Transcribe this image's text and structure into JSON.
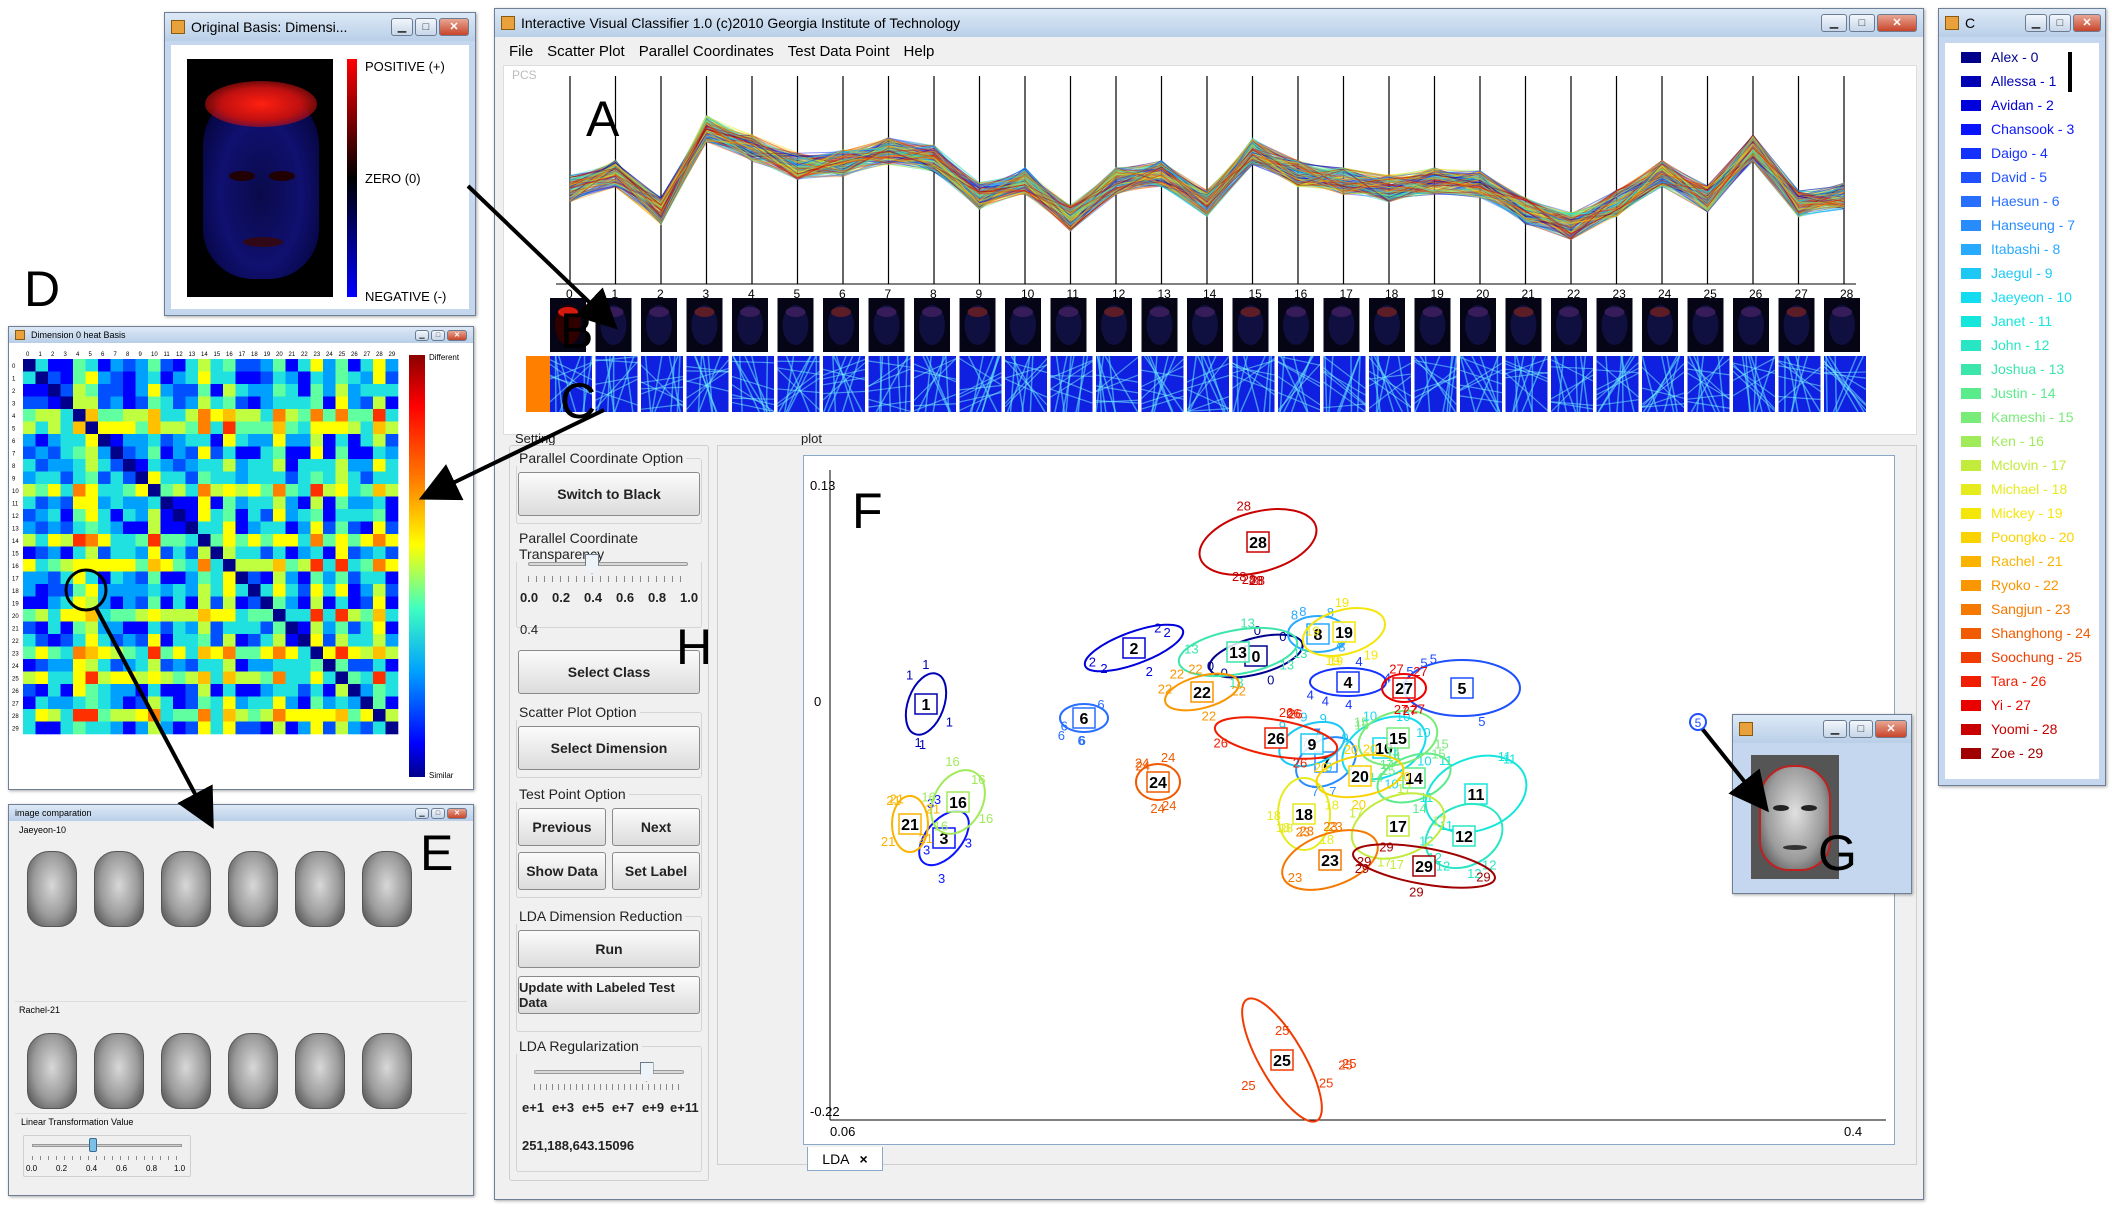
{
  "main_window": {
    "title": "Interactive Visual Classifier 1.0 (c)2010 Georgia Institute of Technology",
    "menu": [
      "File",
      "Scatter Plot",
      "Parallel Coordinates",
      "Test Data Point",
      "Help"
    ],
    "pcs_label": "PCS",
    "axis_numbers": [
      "0",
      "1",
      "2",
      "3",
      "4",
      "5",
      "6",
      "7",
      "8",
      "9",
      "10",
      "11",
      "12",
      "13",
      "14",
      "15",
      "16",
      "17",
      "18",
      "19",
      "20",
      "21",
      "22",
      "23",
      "24",
      "25",
      "26",
      "27",
      "28"
    ]
  },
  "setting": {
    "title": "Setting",
    "pc_option": {
      "title": "Parallel Coordinate Option",
      "button": "Switch to Black"
    },
    "pc_transparency": {
      "title": "Parallel Coordinate Transparency",
      "ticks": [
        "0.0",
        "0.2",
        "0.4",
        "0.6",
        "0.8",
        "1.0"
      ],
      "value_text": "0.4",
      "value": 0.4
    },
    "select_class": "Select Class",
    "scatter_option": {
      "title": "Scatter Plot Option",
      "button": "Select Dimension"
    },
    "test_point_option": {
      "title": "Test Point Option",
      "previous": "Previous",
      "next": "Next",
      "show_data": "Show Data",
      "set_label": "Set Label"
    },
    "lda": {
      "title": "LDA Dimension Reduction",
      "run": "Run",
      "update": "Update with Labeled Test Data"
    },
    "lda_reg": {
      "title": "LDA Regularization",
      "ticks": [
        "e+1",
        "e+3",
        "e+5",
        "e+7",
        "e+9",
        "e+11"
      ],
      "value_text": "251,188,643.15096",
      "level": 0.75
    }
  },
  "plot": {
    "title": "plot",
    "y_top": "0.13",
    "y_mid": "0",
    "y_bottom": "-0.22",
    "x_left": "0.06",
    "x_right": "0.4",
    "tab": "LDA",
    "tab_close": "×"
  },
  "basis_window": {
    "title": "Original Basis: Dimensi...",
    "positive": "POSITIVE (+)",
    "zero": "ZERO (0)",
    "negative": "NEGATIVE (-)"
  },
  "heat_window": {
    "title": "Dimension 0 heat Basis",
    "different": "Different",
    "similar": "Similar"
  },
  "compare_window": {
    "title": "image comparation",
    "group1": "Jaeyeon-10",
    "group2": "Rachel-21",
    "slider_title": "Linear Transformation Value",
    "ticks": [
      "0.0",
      "0.2",
      "0.4",
      "0.6",
      "0.8",
      "1.0"
    ],
    "value": 0.4
  },
  "legend_window": {
    "title": "C",
    "items": [
      {
        "label": "Alex - 0",
        "color": "#00008b"
      },
      {
        "label": "Allessa - 1",
        "color": "#0000b4"
      },
      {
        "label": "Avidan - 2",
        "color": "#0000dc"
      },
      {
        "label": "Chansook - 3",
        "color": "#0a14ff"
      },
      {
        "label": "Daigo - 4",
        "color": "#1432ff"
      },
      {
        "label": "David - 5",
        "color": "#1e50ff"
      },
      {
        "label": "Haesun - 6",
        "color": "#286eff"
      },
      {
        "label": "Hanseung - 7",
        "color": "#288cff"
      },
      {
        "label": "Itabashi - 8",
        "color": "#28aaff"
      },
      {
        "label": "Jaegul - 9",
        "color": "#1ec8f5"
      },
      {
        "label": "Jaeyeon - 10",
        "color": "#14dcf0"
      },
      {
        "label": "Janet - 11",
        "color": "#14e6dc"
      },
      {
        "label": "John - 12",
        "color": "#28e6c3"
      },
      {
        "label": "Joshua - 13",
        "color": "#3ce6aa"
      },
      {
        "label": "Justin - 14",
        "color": "#5aeb8c"
      },
      {
        "label": "Kameshi - 15",
        "color": "#78eb78"
      },
      {
        "label": "Ken - 16",
        "color": "#a0eb5a"
      },
      {
        "label": "Mclovin - 17",
        "color": "#c3eb3c"
      },
      {
        "label": "Michael - 18",
        "color": "#e6eb1e"
      },
      {
        "label": "Mickey - 19",
        "color": "#f5e60a"
      },
      {
        "label": "Poongko - 20",
        "color": "#fad200"
      },
      {
        "label": "Rachel - 21",
        "color": "#fab400"
      },
      {
        "label": "Ryoko - 22",
        "color": "#fa9600"
      },
      {
        "label": "Sangjun - 23",
        "color": "#f57800"
      },
      {
        "label": "Shanghong - 24",
        "color": "#f05a00"
      },
      {
        "label": "Soochung - 25",
        "color": "#f03c00"
      },
      {
        "label": "Tara - 26",
        "color": "#f01e00"
      },
      {
        "label": "Yi - 27",
        "color": "#eb0000"
      },
      {
        "label": "Yoomi - 28",
        "color": "#c80000"
      },
      {
        "label": "Zoe - 29",
        "color": "#a00000"
      }
    ]
  },
  "annotations": {
    "A": "A",
    "B": "B",
    "C": "C",
    "D": "D",
    "E": "E",
    "F": "F",
    "G": "G",
    "H": "H",
    "I": "I"
  },
  "test_point_label": "5",
  "cluster_labels": [
    "0",
    "1",
    "2",
    "3",
    "4",
    "5",
    "6",
    "7",
    "8",
    "9",
    "10",
    "11",
    "12",
    "13",
    "14",
    "15",
    "16",
    "17",
    "18",
    "19",
    "20",
    "21",
    "22",
    "23",
    "24",
    "25",
    "26",
    "27",
    "28",
    "29"
  ],
  "heat_axis_labels": [
    "0",
    "1",
    "2",
    "3",
    "4",
    "5",
    "6",
    "7",
    "8",
    "9",
    "10",
    "11",
    "12",
    "13",
    "14",
    "15",
    "16",
    "17",
    "18",
    "19",
    "20",
    "21",
    "22",
    "23",
    "24",
    "25",
    "26",
    "27",
    "28",
    "29"
  ]
}
